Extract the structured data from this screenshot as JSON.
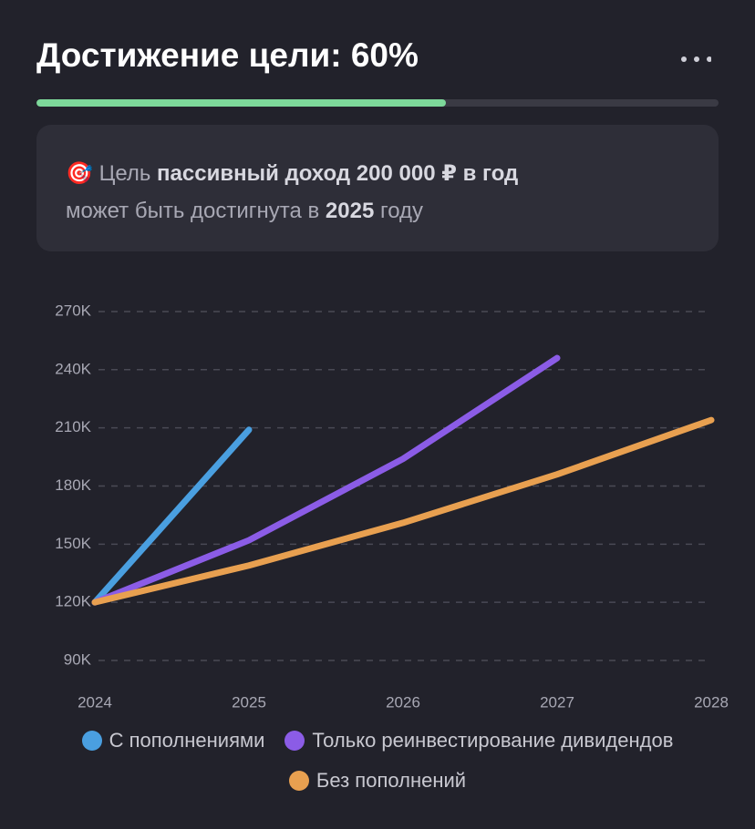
{
  "header": {
    "title": "Достижение цели: 60%"
  },
  "progress": 60,
  "goal": {
    "icon": "🎯",
    "prefix": "Цель",
    "goal": "пассивный доход 200 000 ₽ в год",
    "middle": "может быть достигнута в",
    "year": "2025",
    "suffix": "году"
  },
  "chart_data": {
    "type": "line",
    "x": [
      2024,
      2025,
      2026,
      2027,
      2028
    ],
    "xlim": [
      2024,
      2028
    ],
    "xticks": [
      2024,
      2025,
      2026,
      2027,
      2028
    ],
    "ylim": [
      75000,
      280000
    ],
    "yticks": [
      {
        "value": 90000,
        "label": "90K"
      },
      {
        "value": 120000,
        "label": "120K"
      },
      {
        "value": 150000,
        "label": "150K"
      },
      {
        "value": 180000,
        "label": "180K"
      },
      {
        "value": 210000,
        "label": "210K"
      },
      {
        "value": 240000,
        "label": "240K"
      },
      {
        "value": 270000,
        "label": "270K"
      }
    ],
    "grid": true,
    "series": [
      {
        "name": "С пополнениями",
        "color": "#4a9fe0",
        "values": [
          120000,
          209000,
          null,
          null,
          null
        ]
      },
      {
        "name": "Только реинвестирование дивидендов",
        "color": "#8b5ce6",
        "values": [
          120000,
          152000,
          194000,
          246000,
          null
        ]
      },
      {
        "name": "Без пополнений",
        "color": "#e8a050",
        "values": [
          120000,
          139000,
          161000,
          186000,
          214000
        ]
      }
    ]
  }
}
